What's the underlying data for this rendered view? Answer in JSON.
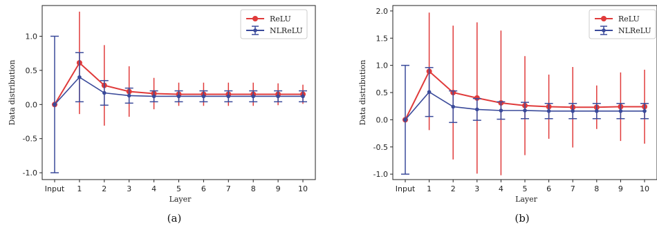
{
  "chart_data": [
    {
      "type": "line",
      "caption": "(a)",
      "xlabel": "Layer",
      "ylabel": "Data distribution",
      "categories": [
        "Input",
        "1",
        "2",
        "3",
        "4",
        "5",
        "6",
        "7",
        "8",
        "9",
        "10"
      ],
      "ylim": [
        -1.1,
        1.45
      ],
      "yticks": [
        "-1.0",
        "-0.5",
        "0.0",
        "0.5",
        "1.0"
      ],
      "legend_position": "top-right",
      "series": [
        {
          "name": "ReLU",
          "color": "#e03a3a",
          "values": [
            0.0,
            0.61,
            0.28,
            0.19,
            0.16,
            0.15,
            0.15,
            0.15,
            0.15,
            0.15,
            0.15
          ],
          "err": [
            0.0,
            0.75,
            0.59,
            0.37,
            0.23,
            0.17,
            0.17,
            0.17,
            0.17,
            0.16,
            0.14
          ]
        },
        {
          "name": "NLReLU",
          "color": "#3a4a9a",
          "values": [
            0.0,
            0.4,
            0.17,
            0.13,
            0.12,
            0.12,
            0.12,
            0.12,
            0.12,
            0.12,
            0.12
          ],
          "err": [
            1.0,
            0.36,
            0.18,
            0.11,
            0.08,
            0.08,
            0.08,
            0.08,
            0.08,
            0.08,
            0.08
          ]
        }
      ]
    },
    {
      "type": "line",
      "caption": "(b)",
      "xlabel": "Layer",
      "ylabel": "Data distribution",
      "categories": [
        "Input",
        "1",
        "2",
        "3",
        "4",
        "5",
        "6",
        "7",
        "8",
        "9",
        "10"
      ],
      "ylim": [
        -1.1,
        2.1
      ],
      "yticks": [
        "-1.0",
        "-0.5",
        "0.0",
        "0.5",
        "1.0",
        "1.5",
        "2.0"
      ],
      "legend_position": "top-right",
      "series": [
        {
          "name": "ReLU",
          "color": "#e03a3a",
          "values": [
            0.0,
            0.89,
            0.5,
            0.4,
            0.31,
            0.26,
            0.24,
            0.23,
            0.23,
            0.24,
            0.24
          ],
          "err": [
            0.0,
            1.08,
            1.23,
            1.39,
            1.33,
            0.91,
            0.59,
            0.74,
            0.4,
            0.63,
            0.68
          ]
        },
        {
          "name": "NLReLU",
          "color": "#3a4a9a",
          "values": [
            0.0,
            0.51,
            0.24,
            0.19,
            0.17,
            0.17,
            0.16,
            0.16,
            0.16,
            0.16,
            0.16
          ],
          "err": [
            1.0,
            0.45,
            0.29,
            0.2,
            0.16,
            0.15,
            0.14,
            0.14,
            0.14,
            0.14,
            0.14
          ]
        }
      ]
    }
  ]
}
